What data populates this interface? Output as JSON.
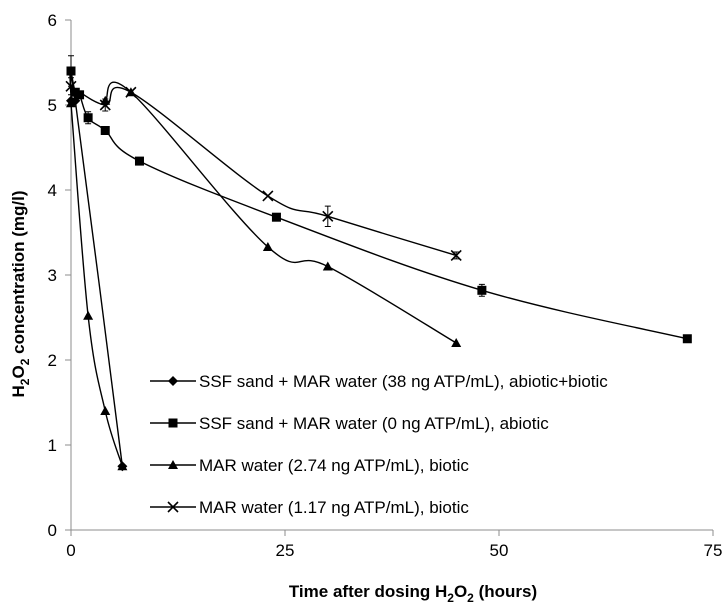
{
  "chart_data": {
    "type": "line",
    "title": "",
    "xlabel": {
      "pre": "Time after dosing H",
      "sub": "2",
      "post": "O",
      "sub2": "2",
      "tail": " (hours)"
    },
    "ylabel": {
      "pre": "H",
      "sub": "2",
      "post": "O",
      "sub2": "2",
      "tail": " concentration (mg/l)"
    },
    "xlim": [
      0,
      75
    ],
    "ylim": [
      0,
      6
    ],
    "xticks": [
      0,
      25,
      50,
      75
    ],
    "yticks": [
      0,
      1,
      2,
      3,
      4,
      5,
      6
    ],
    "legend_position": "bottom-center",
    "series": [
      {
        "name": "SSF sand + MAR water (38 ng ATP/mL), abiotic+biotic",
        "marker": "diamond",
        "points": [
          [
            0,
            5.05
          ],
          [
            0.5,
            5.05
          ],
          [
            6,
            0.75
          ]
        ]
      },
      {
        "name": "SSF sand + MAR water (0 ng ATP/mL), abiotic",
        "marker": "square",
        "points": [
          [
            0,
            5.4
          ],
          [
            0.5,
            5.15
          ],
          [
            1,
            5.12
          ],
          [
            2,
            4.85
          ],
          [
            4,
            4.7
          ],
          [
            8,
            4.34
          ],
          [
            24,
            3.68
          ],
          [
            48,
            2.82
          ],
          [
            72,
            2.25
          ]
        ],
        "errors": [
          0.18,
          0,
          0,
          0.07,
          0,
          0,
          0,
          0.07,
          0.03
        ]
      },
      {
        "name": "MAR water (2.74 ng ATP/mL), biotic",
        "marker": "triangle",
        "points": [
          [
            0,
            5.02
          ],
          [
            2,
            2.52
          ],
          [
            4,
            1.4
          ],
          [
            6,
            0.75
          ]
        ],
        "tail_points": [
          [
            4,
            5.05
          ],
          [
            7,
            5.15
          ],
          [
            23,
            3.33
          ],
          [
            30,
            3.1
          ],
          [
            45,
            2.2
          ]
        ]
      },
      {
        "name": "MAR water (1.17 ng ATP/mL), biotic",
        "marker": "x",
        "points": [
          [
            0,
            5.22
          ],
          [
            4,
            5.0
          ],
          [
            7,
            5.15
          ],
          [
            23,
            3.93
          ],
          [
            30,
            3.69
          ],
          [
            45,
            3.23
          ]
        ],
        "errors": [
          0.1,
          0.07,
          0,
          0,
          0.12,
          0.04
        ]
      }
    ]
  }
}
